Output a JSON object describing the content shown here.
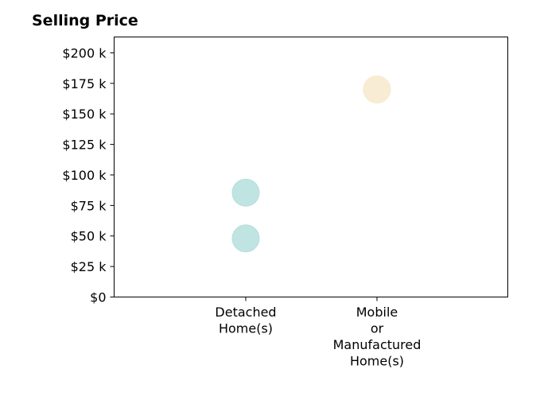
{
  "chart_data": {
    "type": "scatter",
    "title": "Selling Price",
    "xlabel": "",
    "ylabel": "",
    "categories": [
      [
        "Detached",
        "Home(s)"
      ],
      [
        "Mobile",
        "or",
        "Manufactured",
        "Home(s)"
      ]
    ],
    "y_ticks": [
      0,
      25000,
      50000,
      75000,
      100000,
      125000,
      150000,
      175000,
      200000
    ],
    "y_tick_labels": [
      "$0",
      "$25 k",
      "$50 k",
      "$75 k",
      "$100 k",
      "$125 k",
      "$150 k",
      "$175 k",
      "$200 k"
    ],
    "ylim": [
      0,
      213000
    ],
    "grid": false,
    "points": [
      {
        "category": 0,
        "y": 48000,
        "color": "#b5dfdc"
      },
      {
        "category": 0,
        "y": 85500,
        "color": "#b5dfdc"
      },
      {
        "category": 1,
        "y": 170000,
        "color": "#f8e9cc"
      }
    ]
  }
}
